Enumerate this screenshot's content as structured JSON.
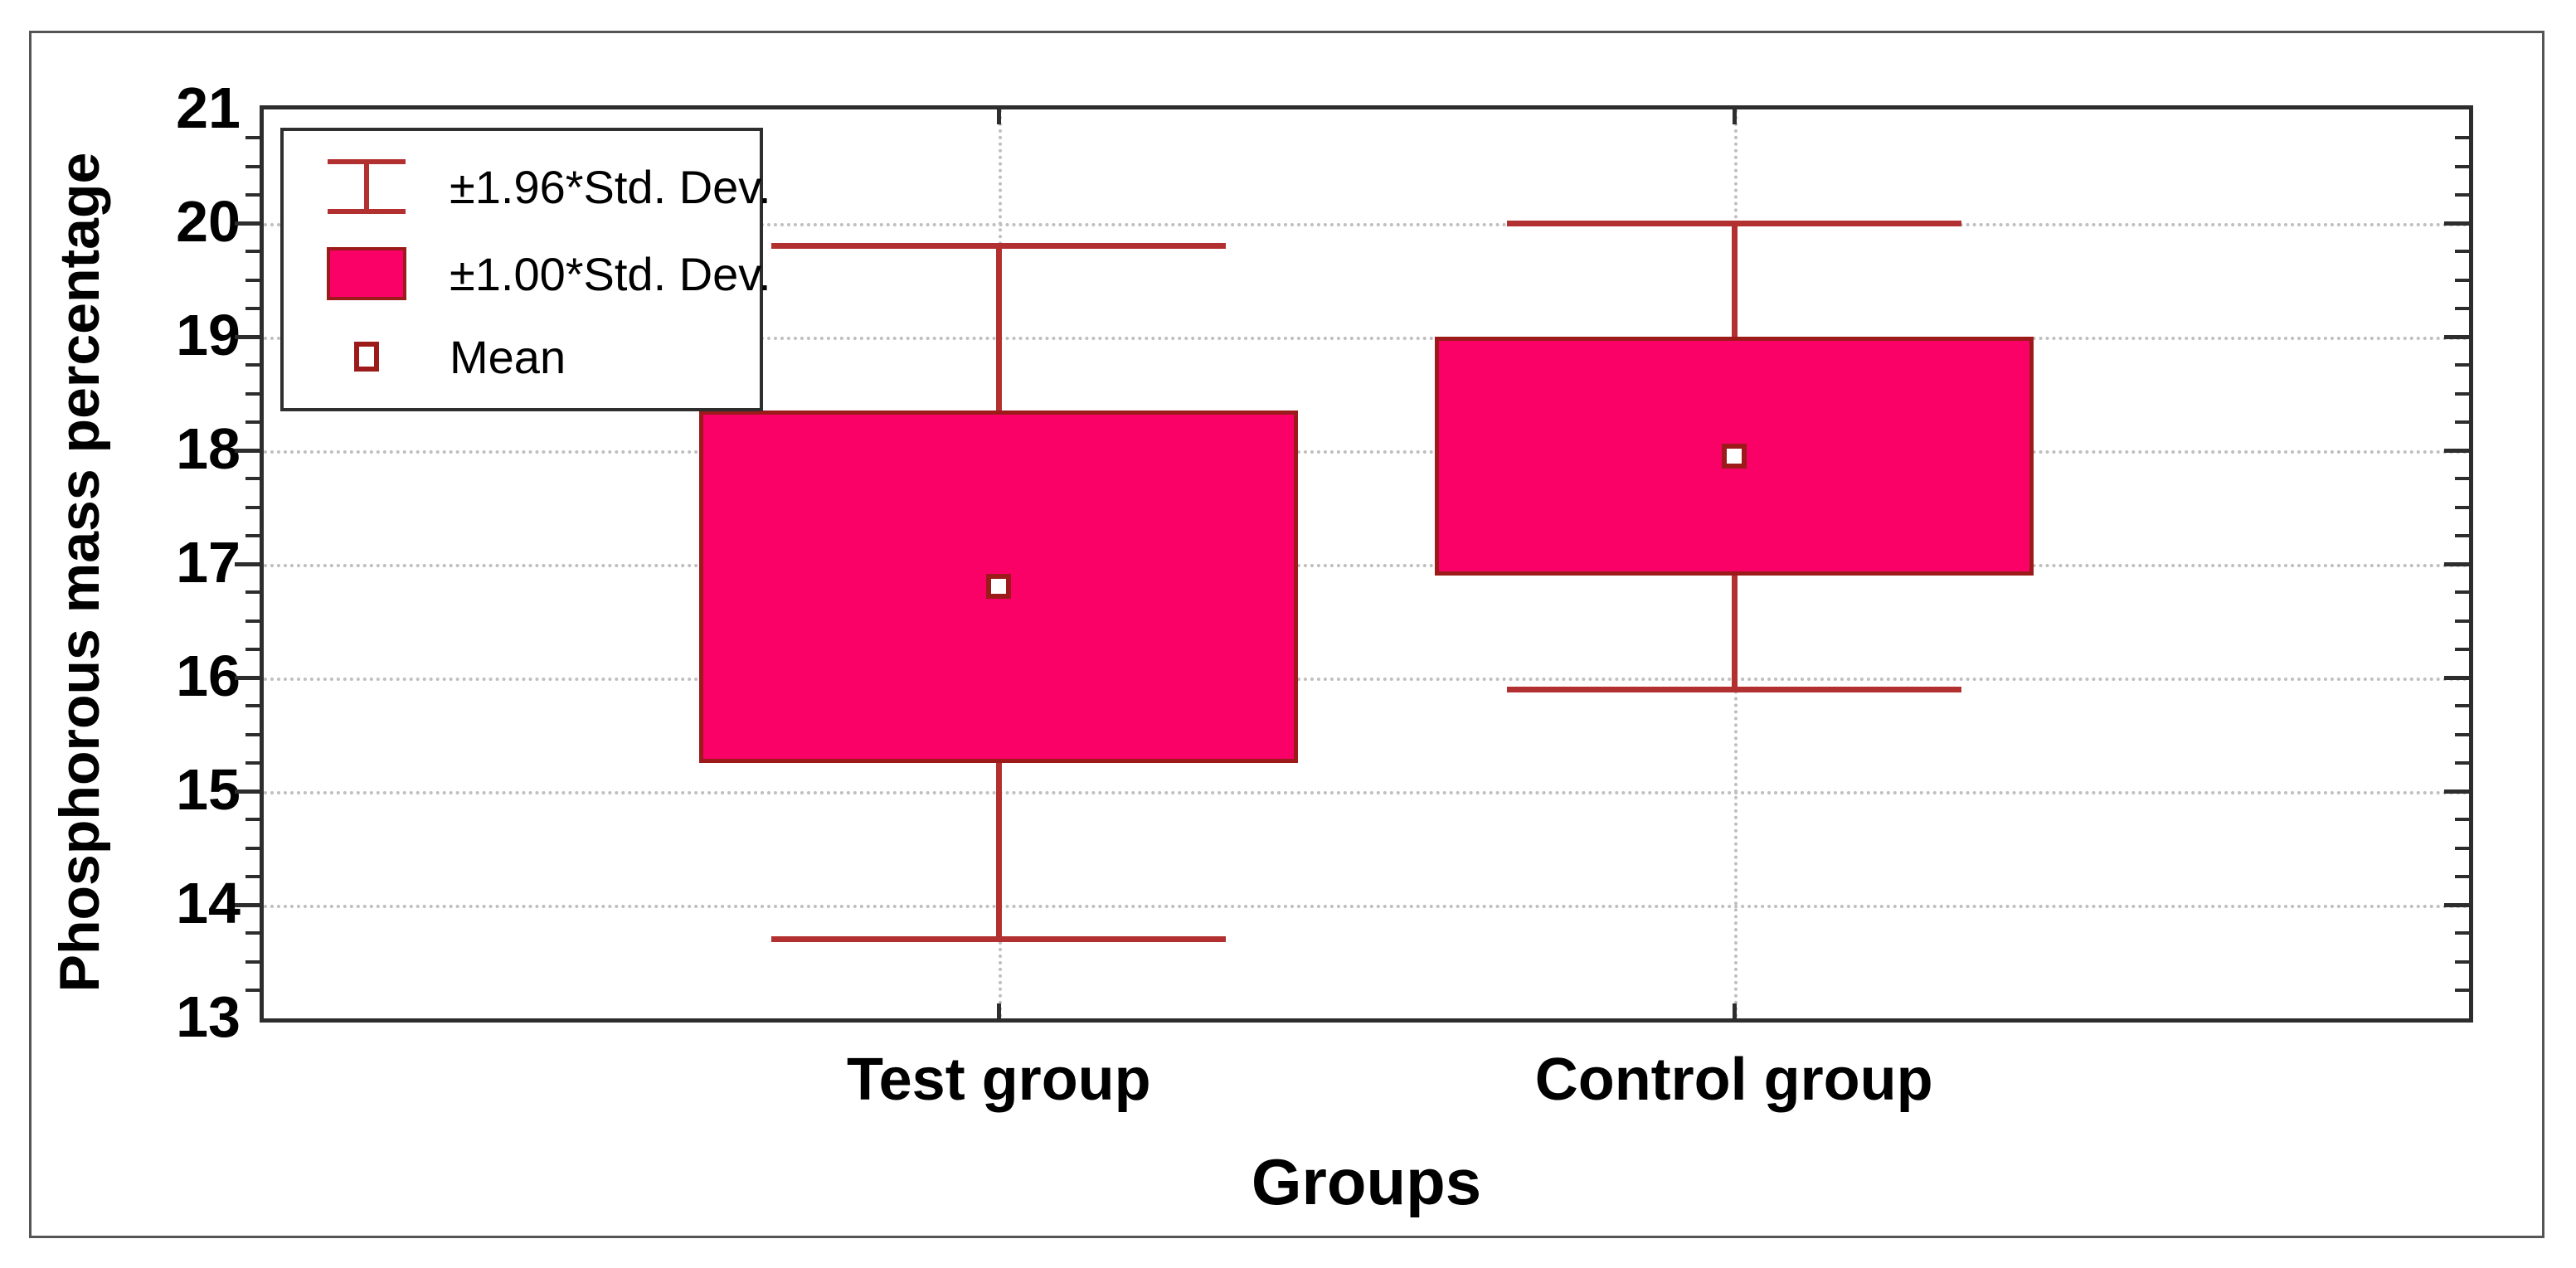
{
  "chart_data": {
    "type": "box",
    "title": "",
    "xlabel": "Groups",
    "ylabel": "Phosphorous mass percentage",
    "ylim": [
      13,
      21
    ],
    "y_major_tick_step": 1,
    "y_minor_tick_step": 0.25,
    "y_tick_labels": [
      "13",
      "14",
      "15",
      "16",
      "17",
      "18",
      "19",
      "20",
      "21"
    ],
    "grid": {
      "horizontal": "dotted line at each integer",
      "vertical": "dotted line at each category center"
    },
    "categories": [
      "Test group",
      "Control group"
    ],
    "groups": [
      {
        "category": "Test group",
        "mean": 16.8,
        "std_dev_low": 15.25,
        "std_dev_high": 18.35,
        "whisker_low": 13.7,
        "whisker_high": 19.8
      },
      {
        "category": "Control group",
        "mean": 17.95,
        "std_dev_low": 16.9,
        "std_dev_high": 19.0,
        "whisker_low": 15.9,
        "whisker_high": 20.0
      }
    ],
    "legend_position": "top-left",
    "legend": [
      {
        "symbol": "error-bar",
        "label": "±1.96*Std. Dev."
      },
      {
        "symbol": "filled-box",
        "label": "±1.00*Std. Dev."
      },
      {
        "symbol": "mean-square",
        "label": "Mean"
      }
    ]
  },
  "colors": {
    "background": "#FFFFFF",
    "box_fill": "#FA0168",
    "box_border": "#9C1A1A",
    "whisker": "#B23030",
    "grid_line": "#BFBFBF",
    "frame": "#2D2D2D",
    "outer_border": "#555555",
    "text": "#000000"
  }
}
